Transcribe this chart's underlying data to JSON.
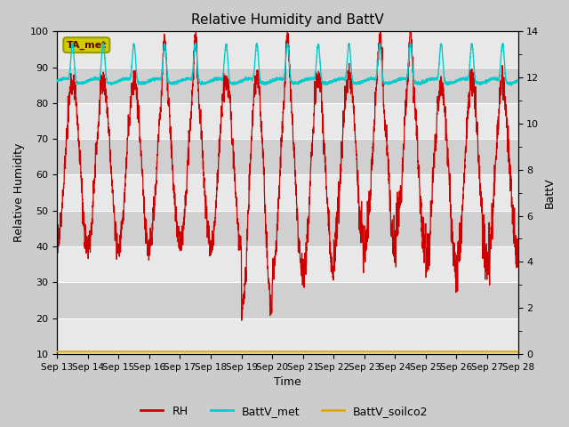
{
  "title": "Relative Humidity and BattV",
  "xlabel": "Time",
  "ylabel_left": "Relative Humidity",
  "ylabel_right": "BattV",
  "x_tick_labels": [
    "Sep 13",
    "Sep 14",
    "Sep 15",
    "Sep 16",
    "Sep 17",
    "Sep 18",
    "Sep 19",
    "Sep 20",
    "Sep 21",
    "Sep 22",
    "Sep 23",
    "Sep 24",
    "Sep 25",
    "Sep 26",
    "Sep 27",
    "Sep 28"
  ],
  "ylim_left": [
    10,
    100
  ],
  "ylim_right": [
    0,
    14
  ],
  "yticks_left": [
    10,
    20,
    30,
    40,
    50,
    60,
    70,
    80,
    90,
    100
  ],
  "yticks_right": [
    0,
    2,
    4,
    6,
    8,
    10,
    12,
    14
  ],
  "rh_color": "#cc0000",
  "battv_met_color": "#00cccc",
  "battv_soilco2_color": "#ddaa00",
  "fig_bg_color": "#cccccc",
  "plot_bg_light": "#e8e8e8",
  "plot_bg_dark": "#d0d0d0",
  "grid_color": "#ffffff",
  "annotation_text": "TA_met",
  "annotation_bg": "#cccc00",
  "annotation_edge": "#999900",
  "legend_entries": [
    "RH",
    "BattV_met",
    "BattV_soilco2"
  ],
  "title_fontsize": 11,
  "label_fontsize": 9,
  "tick_fontsize": 8
}
